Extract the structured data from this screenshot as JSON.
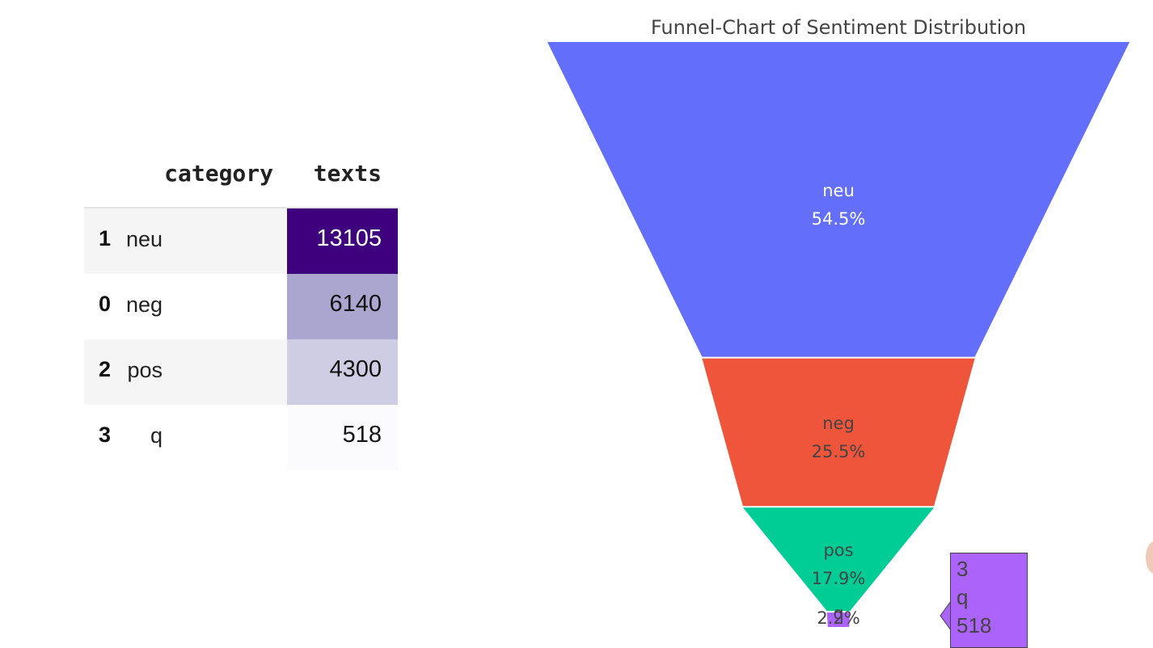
{
  "table": {
    "columns": [
      "category",
      "texts"
    ],
    "rows": [
      {
        "index": "1",
        "category": "neu",
        "texts": "13105",
        "bg": "#3f007d",
        "fg": "#ffffff"
      },
      {
        "index": "0",
        "category": "neg",
        "texts": "6140",
        "bg": "#aaa6cf",
        "fg": "#111111"
      },
      {
        "index": "2",
        "category": "pos",
        "texts": "4300",
        "bg": "#cfcde4",
        "fg": "#111111"
      },
      {
        "index": "3",
        "category": "q",
        "texts": "518",
        "bg": "#fbfafd",
        "fg": "#111111"
      }
    ]
  },
  "chart_data": {
    "type": "funnel",
    "title": "Funnel-Chart of Sentiment Distribution",
    "categories": [
      "neu",
      "neg",
      "pos",
      "q"
    ],
    "values": [
      13105,
      6140,
      4300,
      518
    ],
    "percent_labels": [
      "54.5%",
      "25.5%",
      "17.9%",
      "2.2%"
    ],
    "colors": [
      "#636efa",
      "#ef553b",
      "#00cc96",
      "#ab63fa"
    ],
    "label_colors": [
      "#ffffff",
      "#444444",
      "#444444",
      "#444444"
    ]
  },
  "hover": {
    "index": "3",
    "category": "q",
    "value": "518",
    "color": "#ab63fa"
  }
}
